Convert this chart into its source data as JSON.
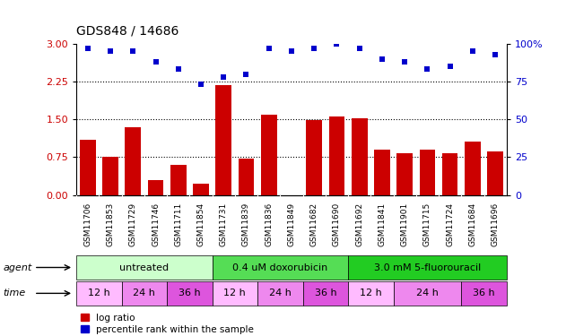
{
  "title": "GDS848 / 14686",
  "samples": [
    "GSM11706",
    "GSM11853",
    "GSM11729",
    "GSM11746",
    "GSM11711",
    "GSM11854",
    "GSM11731",
    "GSM11839",
    "GSM11836",
    "GSM11849",
    "GSM11682",
    "GSM11690",
    "GSM11692",
    "GSM11841",
    "GSM11901",
    "GSM11715",
    "GSM11724",
    "GSM11684",
    "GSM11696"
  ],
  "log_ratio": [
    1.1,
    0.75,
    1.35,
    0.3,
    0.6,
    0.22,
    2.18,
    0.72,
    1.6,
    0.0,
    1.48,
    1.55,
    1.52,
    0.9,
    0.82,
    0.9,
    0.83,
    1.05,
    0.87
  ],
  "percentile": [
    97,
    95,
    95,
    88,
    83,
    73,
    78,
    80,
    97,
    95,
    97,
    100,
    97,
    90,
    88,
    83,
    85,
    95,
    93
  ],
  "bar_color": "#cc0000",
  "dot_color": "#0000cc",
  "ylim_left": [
    0,
    3
  ],
  "ylim_right": [
    0,
    100
  ],
  "yticks_left": [
    0,
    0.75,
    1.5,
    2.25,
    3
  ],
  "yticks_right": [
    0,
    25,
    50,
    75,
    100
  ],
  "ytick_labels_right": [
    "0",
    "25",
    "50",
    "75",
    "100%"
  ],
  "hlines": [
    0.75,
    1.5,
    2.25
  ],
  "agents": [
    {
      "label": "untreated",
      "start": 0,
      "end": 6,
      "color": "#ccffcc"
    },
    {
      "label": "0.4 uM doxorubicin",
      "start": 6,
      "end": 12,
      "color": "#55dd55"
    },
    {
      "label": "3.0 mM 5-fluorouracil",
      "start": 12,
      "end": 19,
      "color": "#22cc22"
    }
  ],
  "times": [
    {
      "label": "12 h",
      "start": 0,
      "end": 2,
      "color": "#ffbbff"
    },
    {
      "label": "24 h",
      "start": 2,
      "end": 4,
      "color": "#ee88ee"
    },
    {
      "label": "36 h",
      "start": 4,
      "end": 6,
      "color": "#dd55dd"
    },
    {
      "label": "12 h",
      "start": 6,
      "end": 8,
      "color": "#ffbbff"
    },
    {
      "label": "24 h",
      "start": 8,
      "end": 10,
      "color": "#ee88ee"
    },
    {
      "label": "36 h",
      "start": 10,
      "end": 12,
      "color": "#dd55dd"
    },
    {
      "label": "12 h",
      "start": 12,
      "end": 14,
      "color": "#ffbbff"
    },
    {
      "label": "24 h",
      "start": 14,
      "end": 17,
      "color": "#ee88ee"
    },
    {
      "label": "36 h",
      "start": 17,
      "end": 19,
      "color": "#dd55dd"
    }
  ],
  "legend": [
    {
      "label": "log ratio",
      "color": "#cc0000"
    },
    {
      "label": "percentile rank within the sample",
      "color": "#0000cc"
    }
  ],
  "bg_color": "#ffffff",
  "xtick_bg": "#cccccc"
}
